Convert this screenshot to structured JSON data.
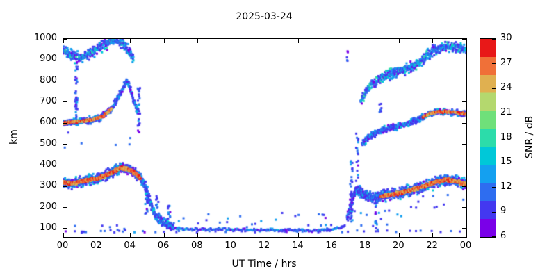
{
  "chart_data": {
    "type": "scatter",
    "title": "2025-03-24",
    "xlabel": "UT Time / hrs",
    "ylabel": "km",
    "xlim": [
      0,
      24
    ],
    "ylim": [
      60,
      1000
    ],
    "grid": false,
    "xticks": {
      "values": [
        0,
        2,
        4,
        6,
        8,
        10,
        12,
        14,
        16,
        18,
        20,
        22,
        24
      ],
      "labels": [
        "00",
        "02",
        "04",
        "06",
        "08",
        "10",
        "12",
        "14",
        "16",
        "18",
        "20",
        "22",
        "00"
      ]
    },
    "yticks": [
      100,
      200,
      300,
      400,
      500,
      600,
      700,
      800,
      900,
      1000
    ],
    "colorbar": {
      "label": "SNR / dB",
      "min": 6,
      "max": 30,
      "ticks": [
        6,
        9,
        12,
        15,
        18,
        21,
        24,
        27,
        30
      ],
      "colors": [
        "#7a00e8",
        "#4338f0",
        "#2e6df0",
        "#14a0f0",
        "#00c8d8",
        "#2cdcaa",
        "#6fe07a",
        "#b4d86e",
        "#e0b050",
        "#f07038",
        "#e81818"
      ]
    },
    "seed": 42,
    "traces": [
      {
        "name": "f-region-morning",
        "step": 0.022,
        "per_step": 3,
        "spread": 22,
        "snr": [
          8,
          16
        ],
        "core": {
          "ranges": [
            [
              0,
              4.6
            ]
          ],
          "snr": [
            23,
            30
          ],
          "spread": 8,
          "per_step": 2
        },
        "points": [
          [
            0,
            318
          ],
          [
            0.5,
            312
          ],
          [
            1,
            322
          ],
          [
            1.5,
            332
          ],
          [
            2,
            336
          ],
          [
            2.5,
            350
          ],
          [
            3,
            370
          ],
          [
            3.4,
            388
          ],
          [
            3.8,
            384
          ],
          [
            4.2,
            366
          ],
          [
            4.6,
            340
          ],
          [
            4.9,
            298
          ],
          [
            5.15,
            225
          ],
          [
            5.45,
            170
          ],
          [
            5.8,
            140
          ],
          [
            6.2,
            118
          ],
          [
            6.6,
            106
          ]
        ]
      },
      {
        "name": "e-valley",
        "step": 0.05,
        "per_step": 1,
        "spread": 7,
        "snr": [
          8,
          15
        ],
        "points": [
          [
            6.6,
            102
          ],
          [
            8,
            96
          ],
          [
            10,
            95
          ],
          [
            12,
            93
          ],
          [
            14,
            91
          ],
          [
            15.5,
            92
          ],
          [
            16.4,
            100
          ],
          [
            16.8,
            115
          ]
        ]
      },
      {
        "name": "f-region-evening",
        "step": 0.022,
        "per_step": 3,
        "spread": 24,
        "snr": [
          8,
          16
        ],
        "core": {
          "ranges": [
            [
              18.9,
              24
            ]
          ],
          "snr": [
            23,
            30
          ],
          "spread": 8,
          "per_step": 2
        },
        "points": [
          [
            16.9,
            150
          ],
          [
            17.15,
            215
          ],
          [
            17.4,
            285
          ],
          [
            17.8,
            268
          ],
          [
            18.2,
            248
          ],
          [
            18.8,
            252
          ],
          [
            19.4,
            260
          ],
          [
            20,
            268
          ],
          [
            20.6,
            280
          ],
          [
            21.2,
            294
          ],
          [
            21.8,
            310
          ],
          [
            22.3,
            324
          ],
          [
            22.8,
            332
          ],
          [
            23.3,
            326
          ],
          [
            23.7,
            316
          ],
          [
            24,
            308
          ]
        ]
      },
      {
        "name": "mid-trace-morning",
        "step": 0.02,
        "per_step": 2,
        "spread": 15,
        "snr": [
          8,
          16
        ],
        "core": {
          "ranges": [
            [
              0,
              2.9
            ]
          ],
          "snr": [
            23,
            30
          ],
          "spread": 6,
          "per_step": 1
        },
        "points": [
          [
            0,
            600
          ],
          [
            0.6,
            606
          ],
          [
            1.2,
            611
          ],
          [
            1.8,
            617
          ],
          [
            2.4,
            634
          ],
          [
            2.9,
            672
          ],
          [
            3.3,
            724
          ],
          [
            3.6,
            772
          ],
          [
            3.8,
            800
          ],
          [
            4.0,
            764
          ],
          [
            4.2,
            708
          ],
          [
            4.45,
            652
          ]
        ]
      },
      {
        "name": "mid-trace-evening",
        "step": 0.022,
        "per_step": 2,
        "spread": 14,
        "snr": [
          8,
          16
        ],
        "core": {
          "ranges": [
            [
              21.4,
              24
            ]
          ],
          "snr": [
            23,
            30
          ],
          "spread": 6,
          "per_step": 1
        },
        "points": [
          [
            17.8,
            500
          ],
          [
            18.2,
            532
          ],
          [
            18.6,
            552
          ],
          [
            19,
            568
          ],
          [
            19.5,
            578
          ],
          [
            20,
            588
          ],
          [
            20.5,
            598
          ],
          [
            21,
            612
          ],
          [
            21.4,
            628
          ],
          [
            21.8,
            644
          ],
          [
            22.2,
            654
          ],
          [
            22.8,
            656
          ],
          [
            23.4,
            650
          ],
          [
            24,
            642
          ]
        ]
      },
      {
        "name": "top-trace-morning",
        "step": 0.022,
        "per_step": 2,
        "spread": 26,
        "snr": [
          8,
          18
        ],
        "points": [
          [
            0,
            945
          ],
          [
            0.4,
            926
          ],
          [
            0.8,
            912
          ],
          [
            1.2,
            918
          ],
          [
            1.6,
            934
          ],
          [
            2,
            952
          ],
          [
            2.4,
            972
          ],
          [
            2.8,
            990
          ],
          [
            3.1,
            998
          ],
          [
            3.4,
            988
          ],
          [
            3.7,
            962
          ],
          [
            4.0,
            932
          ],
          [
            4.2,
            905
          ]
        ]
      },
      {
        "name": "top-trace-evening",
        "step": 0.022,
        "per_step": 2,
        "spread": 22,
        "snr": [
          8,
          18
        ],
        "points": [
          [
            17.7,
            700
          ],
          [
            18,
            748
          ],
          [
            18.4,
            786
          ],
          [
            18.8,
            806
          ],
          [
            19.2,
            826
          ],
          [
            19.7,
            840
          ],
          [
            20.2,
            852
          ],
          [
            20.7,
            866
          ],
          [
            21.2,
            888
          ],
          [
            21.6,
            916
          ],
          [
            22,
            942
          ],
          [
            22.4,
            958
          ],
          [
            22.9,
            962
          ],
          [
            23.4,
            958
          ],
          [
            24,
            950
          ]
        ]
      },
      {
        "name": "bottom-sporadic",
        "step": 0.5,
        "per_step": 1,
        "spread": 6,
        "snr": [
          8,
          13
        ],
        "points": [
          [
            0,
            86
          ],
          [
            24,
            86
          ]
        ]
      }
    ],
    "streaks": [
      {
        "t": 0.78,
        "alt": [
          590,
          880
        ],
        "n": 42,
        "snr": [
          8,
          14
        ]
      },
      {
        "t": 4.5,
        "alt": [
          545,
          770
        ],
        "n": 26,
        "snr": [
          8,
          14
        ]
      },
      {
        "t": 4.95,
        "alt": [
          160,
          300
        ],
        "n": 22,
        "snr": [
          8,
          16
        ]
      },
      {
        "t": 5.6,
        "alt": [
          140,
          255
        ],
        "n": 14,
        "snr": [
          8,
          14
        ]
      },
      {
        "t": 6.3,
        "alt": [
          135,
          215
        ],
        "n": 10,
        "snr": [
          8,
          14
        ]
      },
      {
        "t": 17.15,
        "alt": [
          130,
          430
        ],
        "n": 36,
        "snr": [
          8,
          15
        ]
      },
      {
        "t": 17.5,
        "alt": [
          300,
          560
        ],
        "n": 18,
        "snr": [
          8,
          14
        ]
      },
      {
        "t": 18.6,
        "alt": [
          100,
          260
        ],
        "n": 16,
        "snr": [
          8,
          14
        ]
      },
      {
        "t": 16.9,
        "alt": [
          890,
          950
        ],
        "n": 5,
        "snr": [
          8,
          12
        ]
      },
      {
        "t": 18.9,
        "alt": [
          640,
          700
        ],
        "n": 6,
        "snr": [
          8,
          12
        ]
      }
    ],
    "noise_boxes": [
      {
        "t": [
          5.8,
          16.6
        ],
        "alt": [
          105,
          175
        ],
        "n": 28,
        "snr": [
          8,
          14
        ]
      },
      {
        "t": [
          0,
          5.2
        ],
        "alt": [
          80,
          118
        ],
        "n": 12,
        "snr": [
          8,
          13
        ]
      },
      {
        "t": [
          17,
          20.5
        ],
        "alt": [
          95,
          210
        ],
        "n": 14,
        "snr": [
          8,
          14
        ]
      },
      {
        "t": [
          20.5,
          24
        ],
        "alt": [
          180,
          260
        ],
        "n": 10,
        "snr": [
          8,
          13
        ]
      },
      {
        "t": [
          0,
          4
        ],
        "alt": [
          480,
          560
        ],
        "n": 6,
        "snr": [
          8,
          12
        ]
      }
    ]
  }
}
